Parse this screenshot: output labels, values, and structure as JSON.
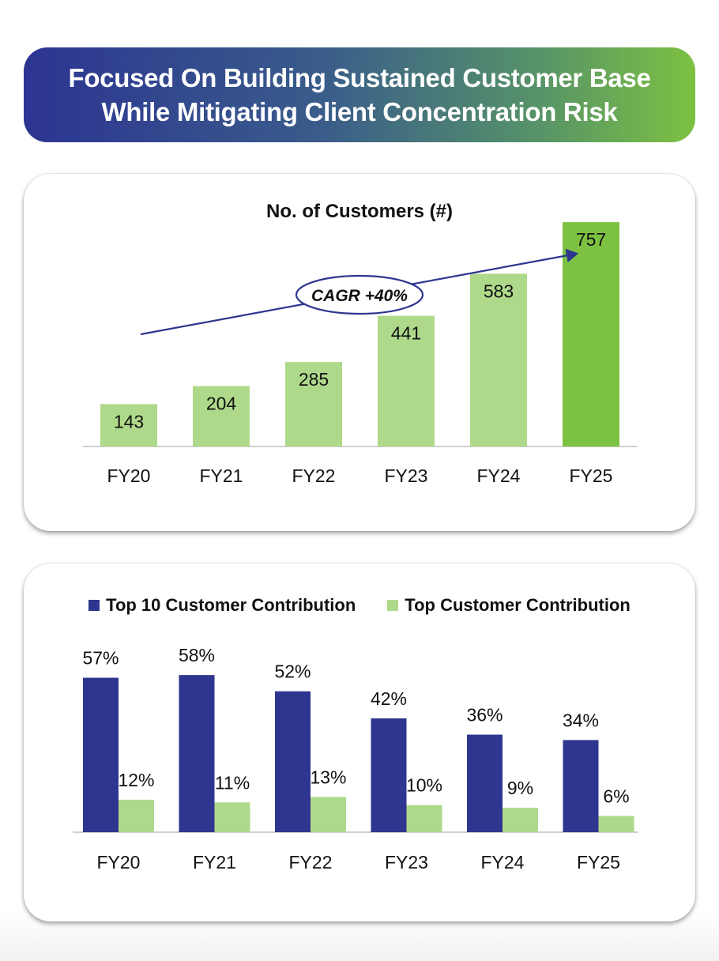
{
  "header": {
    "line1": "Focused On Building Sustained Customer Base",
    "line2": "While Mitigating Client Concentration Risk"
  },
  "colors": {
    "dark_blue": "#2e368f",
    "light_green": "#aed98a",
    "bright_green": "#7dc142"
  },
  "chart_data": [
    {
      "type": "bar",
      "title": "No. of Customers (#)",
      "categories": [
        "FY20",
        "FY21",
        "FY22",
        "FY23",
        "FY24",
        "FY25"
      ],
      "values": [
        143,
        204,
        285,
        441,
        583,
        757
      ],
      "annotation": "CAGR +40%",
      "xlabel": "",
      "ylabel": "",
      "ylim": [
        0,
        800
      ],
      "grid": false
    },
    {
      "type": "bar",
      "categories": [
        "FY20",
        "FY21",
        "FY22",
        "FY23",
        "FY24",
        "FY25"
      ],
      "series": [
        {
          "name": "Top 10 Customer Contribution",
          "values": [
            57,
            58,
            52,
            42,
            36,
            34
          ],
          "labels": [
            "57%",
            "58%",
            "52%",
            "42%",
            "36%",
            "34%"
          ]
        },
        {
          "name": "Top Customer Contribution",
          "values": [
            12,
            11,
            13,
            10,
            9,
            6
          ],
          "labels": [
            "12%",
            "11%",
            "13%",
            "10%",
            "9%",
            "6%"
          ]
        }
      ],
      "legend_position": "top",
      "xlabel": "",
      "ylabel": "",
      "ylim": [
        0,
        70
      ],
      "grid": false
    }
  ]
}
